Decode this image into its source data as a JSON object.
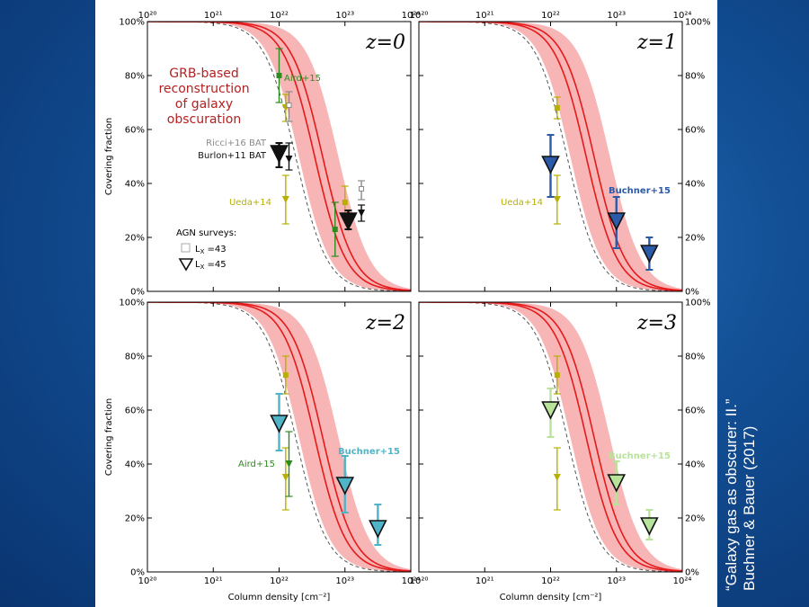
{
  "colors": {
    "band": "#f7a8a8",
    "model": "#e41a1c",
    "dashed": "#555555",
    "aird": "#2e8b20",
    "ueda": "#b8b000",
    "ricci": "#8a8a8a",
    "burlon": "#111111",
    "buchner_z1": "#2a5aa8",
    "buchner_z2": "#4fb4c8",
    "buchner_z3": "#b8e39a",
    "grb_label": "#b22222"
  },
  "side_caption": {
    "line1": "“Galaxy gas as obscurer: II.”",
    "line2": "Buchner & Bauer (2017)"
  },
  "axes": {
    "xlabel": "Column density [cm⁻²]",
    "ylabel": "Covering fraction",
    "xticks": [
      "10²⁰",
      "10²¹",
      "10²²",
      "10²³",
      "10²⁴"
    ],
    "yticks": [
      "0%",
      "20%",
      "40%",
      "60%",
      "80%",
      "100%"
    ],
    "xlim_log": [
      20,
      24
    ],
    "ylim": [
      0,
      100
    ]
  },
  "labels": {
    "grb": [
      "GRB-based",
      "reconstruction",
      "of galaxy",
      "obscuration"
    ],
    "aird": "Aird+15",
    "ueda": "Ueda+14",
    "ricci": "Ricci+16 BAT",
    "burlon": "Burlon+11 BAT",
    "buchner": "Buchner+15",
    "agn_title": "AGN surveys:",
    "agn_lx43": "L",
    "agn_lx43_sub": "X",
    "agn_lx43_val": "=43",
    "agn_lx45": "L",
    "agn_lx45_sub": "X",
    "agn_lx45_val": "=45"
  },
  "chart_data": [
    {
      "type": "line",
      "panel": "z=0",
      "title": "z = 0",
      "model_center_log": 22.6,
      "model_band_log": [
        22.3,
        22.9
      ],
      "dashed_center_log": 22.25,
      "points": {
        "aird": {
          "x": 22.0,
          "y": 80,
          "err": [
            70,
            90
          ],
          "marker": "square"
        },
        "aird_b": {
          "x": 22.85,
          "y": 23,
          "err": [
            13,
            33
          ],
          "marker": "square"
        },
        "ueda_a": {
          "x": 22.1,
          "y": 68,
          "err": [
            63,
            73
          ],
          "marker": "tri-small"
        },
        "ueda_b": {
          "x": 22.1,
          "y": 34,
          "err": [
            25,
            43
          ],
          "marker": "tri-small"
        },
        "ueda_c": {
          "x": 23.0,
          "y": 33,
          "err": [
            28,
            39
          ],
          "marker": "square"
        },
        "ricci_a": {
          "x": 22.15,
          "y": 69,
          "err": [
            63,
            74
          ],
          "marker": "square-open"
        },
        "ricci_b": {
          "x": 23.25,
          "y": 38,
          "err": [
            34,
            41
          ],
          "marker": "square-open"
        },
        "burlon_a": {
          "x": 22.15,
          "y": 49,
          "err": [
            45,
            55
          ],
          "marker": "tri-small"
        },
        "burlon_b": {
          "x": 23.25,
          "y": 29,
          "err": [
            26,
            32
          ],
          "marker": "tri-small"
        },
        "lx45_a": {
          "x": 22.0,
          "y": 51,
          "err": [
            46,
            55
          ],
          "marker": "tri-large"
        },
        "lx45_b": {
          "x": 23.05,
          "y": 26,
          "err": [
            23,
            30
          ],
          "marker": "tri-large"
        }
      }
    },
    {
      "type": "line",
      "panel": "z=1",
      "title": "z = 1",
      "model_center_log": 22.6,
      "model_band_log": [
        22.3,
        22.9
      ],
      "dashed_center_log": 22.25,
      "points": {
        "ueda_a": {
          "x": 22.1,
          "y": 68,
          "err": [
            64,
            72
          ],
          "marker": "square"
        },
        "ueda_b": {
          "x": 22.1,
          "y": 34,
          "err": [
            25,
            43
          ],
          "marker": "tri-small"
        },
        "buchner_a": {
          "x": 22.0,
          "y": 47,
          "err": [
            35,
            58
          ],
          "marker": "tri-large"
        },
        "buchner_b": {
          "x": 23.0,
          "y": 26,
          "err": [
            16,
            35
          ],
          "marker": "tri-large"
        },
        "buchner_c": {
          "x": 23.5,
          "y": 14,
          "err": [
            8,
            20
          ],
          "marker": "tri-large"
        }
      }
    },
    {
      "type": "line",
      "panel": "z=2",
      "title": "z = 2",
      "model_center_log": 22.6,
      "model_band_log": [
        22.3,
        22.9
      ],
      "dashed_center_log": 22.25,
      "points": {
        "ueda_a": {
          "x": 22.1,
          "y": 73,
          "err": [
            66,
            80
          ],
          "marker": "square"
        },
        "ueda_b": {
          "x": 22.1,
          "y": 35,
          "err": [
            23,
            46
          ],
          "marker": "tri-small"
        },
        "aird": {
          "x": 22.15,
          "y": 40,
          "err": [
            28,
            52
          ],
          "marker": "tri-small"
        },
        "buchner_a": {
          "x": 22.0,
          "y": 55,
          "err": [
            45,
            66
          ],
          "marker": "tri-large"
        },
        "buchner_b": {
          "x": 23.0,
          "y": 32,
          "err": [
            22,
            43
          ],
          "marker": "tri-large"
        },
        "buchner_c": {
          "x": 23.5,
          "y": 16,
          "err": [
            10,
            25
          ],
          "marker": "tri-large"
        }
      }
    },
    {
      "type": "line",
      "panel": "z=3",
      "title": "z = 3",
      "model_center_log": 22.6,
      "model_band_log": [
        22.3,
        22.9
      ],
      "dashed_center_log": 22.25,
      "points": {
        "ueda_a": {
          "x": 22.1,
          "y": 73,
          "err": [
            66,
            80
          ],
          "marker": "square"
        },
        "ueda_b": {
          "x": 22.1,
          "y": 35,
          "err": [
            23,
            46
          ],
          "marker": "tri-small"
        },
        "buchner_a": {
          "x": 22.0,
          "y": 60,
          "err": [
            50,
            68
          ],
          "marker": "tri-large"
        },
        "buchner_b": {
          "x": 23.0,
          "y": 33,
          "err": [
            25,
            41
          ],
          "marker": "tri-large"
        },
        "buchner_c": {
          "x": 23.5,
          "y": 17,
          "err": [
            12,
            23
          ],
          "marker": "tri-large"
        }
      }
    }
  ]
}
